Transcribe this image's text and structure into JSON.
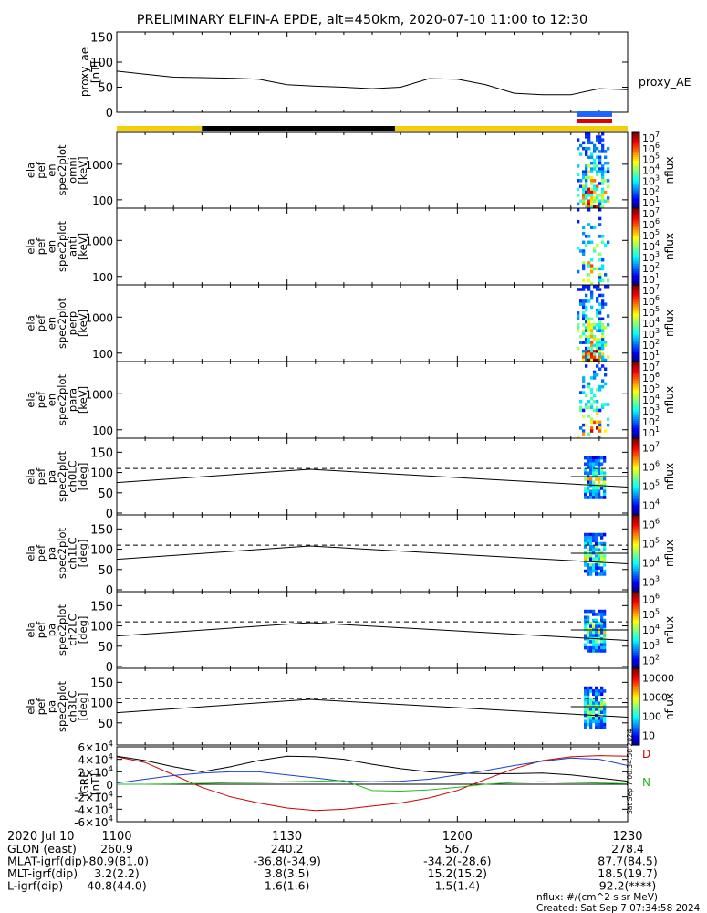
{
  "title": "PRELIMINARY ELFIN-A EPDE, alt=450km, 2020-07-10 11:00 to 12:30",
  "chart_data": [
    {
      "type": "line",
      "panel": "proxy_ae",
      "ylabel": [
        "proxy_ae",
        "[nT]"
      ],
      "legend": "proxy_AE",
      "ylim": [
        0,
        160
      ],
      "yticks": [
        "0",
        "50",
        "100",
        "150"
      ],
      "x_minutes": [
        0,
        5,
        10,
        15,
        20,
        25,
        30,
        35,
        40,
        45,
        50,
        55,
        60,
        65,
        70,
        75,
        80,
        85,
        90
      ],
      "values": [
        82,
        76,
        70,
        69,
        68,
        66,
        55,
        52,
        50,
        47,
        50,
        67,
        66,
        55,
        38,
        35,
        35,
        47,
        45
      ]
    },
    {
      "type": "heatmap",
      "panel": "omni",
      "ylabel": [
        "ela",
        "pef",
        "en",
        "spec2plot",
        "omni",
        "[keV]"
      ],
      "yticks": [
        "100",
        "1000"
      ],
      "colorbar": {
        "label": "nflux",
        "ticks": [
          "10^1",
          "10^2",
          "10^3",
          "10^4",
          "10^5",
          "10^6",
          "10^7"
        ]
      }
    },
    {
      "type": "heatmap",
      "panel": "anti",
      "ylabel": [
        "ela",
        "pef",
        "en",
        "spec2plot",
        "anti",
        "[keV]"
      ],
      "yticks": [
        "100",
        "1000"
      ],
      "colorbar": {
        "label": "nflux",
        "ticks": [
          "10^1",
          "10^2",
          "10^3",
          "10^4",
          "10^5",
          "10^6",
          "10^7"
        ]
      }
    },
    {
      "type": "heatmap",
      "panel": "perp",
      "ylabel": [
        "ela",
        "pef",
        "en",
        "spec2plot",
        "perp",
        "[keV]"
      ],
      "yticks": [
        "100",
        "1000"
      ],
      "colorbar": {
        "label": "nflux",
        "ticks": [
          "10^1",
          "10^2",
          "10^3",
          "10^4",
          "10^5",
          "10^6",
          "10^7"
        ]
      }
    },
    {
      "type": "heatmap",
      "panel": "para",
      "ylabel": [
        "ela",
        "pef",
        "en",
        "spec2plot",
        "para",
        "[keV]"
      ],
      "yticks": [
        "100",
        "1000"
      ],
      "colorbar": {
        "label": "nflux",
        "ticks": [
          "10^1",
          "10^2",
          "10^3",
          "10^4",
          "10^5",
          "10^6",
          "10^7"
        ]
      }
    },
    {
      "type": "heatmap",
      "panel": "ch0LC",
      "ylabel": [
        "ela",
        "pef",
        "pa",
        "spec2plot",
        "ch0LC",
        "[deg]"
      ],
      "ylim": [
        0,
        180
      ],
      "yticks": [
        "0",
        "50",
        "100",
        "150"
      ],
      "colorbar": {
        "label": "nflux",
        "ticks": [
          "10^4",
          "10^5",
          "10^6",
          "10^7"
        ]
      }
    },
    {
      "type": "heatmap",
      "panel": "ch1LC",
      "ylabel": [
        "ela",
        "pef",
        "pa",
        "spec2plot",
        "ch1LC",
        "[deg]"
      ],
      "ylim": [
        0,
        180
      ],
      "yticks": [
        "0",
        "50",
        "100",
        "150"
      ],
      "colorbar": {
        "label": "nflux",
        "ticks": [
          "10^3",
          "10^4",
          "10^5",
          "10^6"
        ]
      }
    },
    {
      "type": "heatmap",
      "panel": "ch2LC",
      "ylabel": [
        "ela",
        "pef",
        "pa",
        "spec2plot",
        "ch2LC",
        "[deg]"
      ],
      "ylim": [
        0,
        180
      ],
      "yticks": [
        "0",
        "50",
        "100",
        "150"
      ],
      "colorbar": {
        "label": "nflux",
        "ticks": [
          "10^2",
          "10^3",
          "10^4",
          "10^5",
          "10^6"
        ]
      }
    },
    {
      "type": "heatmap",
      "panel": "ch3LC",
      "ylabel": [
        "ela",
        "pef",
        "pa",
        "spec2plot",
        "ch3LC",
        "[deg]"
      ],
      "ylim": [
        0,
        180
      ],
      "yticks": [
        "50",
        "100",
        "150"
      ],
      "colorbar": {
        "label": "nflux",
        "ticks": [
          "10",
          "100",
          "1000",
          "10000"
        ]
      }
    },
    {
      "type": "line",
      "panel": "igrf",
      "ylabel": [
        "IGRF",
        "[nT]"
      ],
      "ylim": [
        -60000,
        60000
      ],
      "yticks": [
        "-6×10^4",
        "-4×10^4",
        "-2×10^4",
        "0",
        "2×10^4",
        "4×10^4",
        "6×10^4"
      ],
      "x_minutes": [
        0,
        5,
        10,
        15,
        20,
        25,
        30,
        35,
        40,
        45,
        50,
        55,
        60,
        65,
        70,
        75,
        80,
        85,
        90
      ],
      "series": [
        {
          "name": "D",
          "color": "#cc0000",
          "values": [
            44000,
            35000,
            15000,
            -5000,
            -20000,
            -30000,
            -38000,
            -42000,
            -40000,
            -35000,
            -30000,
            -22000,
            -10000,
            8000,
            25000,
            38000,
            44000,
            46000,
            45000
          ]
        },
        {
          "name": "",
          "color": "#000000",
          "values": [
            45000,
            38000,
            28000,
            20000,
            28000,
            38000,
            45000,
            44000,
            40000,
            32000,
            25000,
            20000,
            18000,
            17000,
            17000,
            18000,
            15000,
            10000,
            5000
          ]
        },
        {
          "name": "",
          "color": "#1a3fd0",
          "values": [
            2000,
            8000,
            14000,
            18000,
            20000,
            20000,
            15000,
            10000,
            5000,
            4000,
            5000,
            8000,
            15000,
            22000,
            30000,
            37000,
            42000,
            40000,
            30000
          ]
        },
        {
          "name": "N",
          "color": "#22bb22",
          "values": [
            0,
            0,
            500,
            1500,
            2500,
            3000,
            4000,
            5000,
            6000,
            -10000,
            -11000,
            -9000,
            -5000,
            0,
            3000,
            4000,
            3000,
            2000,
            1000
          ]
        }
      ]
    }
  ],
  "ephemeris": {
    "time_row": {
      "label": "2020 Jul 10",
      "values": [
        "1100",
        "1130",
        "1200",
        "1230"
      ]
    },
    "rows": [
      {
        "label": "GLON (east)",
        "values": [
          "260.9",
          "240.2",
          "56.7",
          "278.4"
        ]
      },
      {
        "label": "MLAT-igrf(dip)",
        "values": [
          "-80.9(81.0)",
          "-36.8(-34.9)",
          "-34.2(-28.6)",
          "87.7(84.5)"
        ]
      },
      {
        "label": "MLT-igrf(dip)",
        "values": [
          "3.2(2.2)",
          "3.8(3.5)",
          "15.2(15.2)",
          "18.5(19.7)"
        ]
      },
      {
        "label": "L-igrf(dip)",
        "values": [
          "40.8(44.0)",
          "1.6(1.6)",
          "1.5(1.4)",
          "92.2(****)"
        ]
      }
    ]
  },
  "footer": {
    "units": "nflux: #/(cm^2 s sr MeV)",
    "created": "Created: Sat Sep  7 07:34:58 2024",
    "side_stamp": "Sat Sep  7 00:34:58 2024"
  },
  "colors": {
    "yellow": "#f5d000",
    "black": "#000000",
    "blue_bar": "#1a64ff",
    "red_bar": "#e00000"
  }
}
